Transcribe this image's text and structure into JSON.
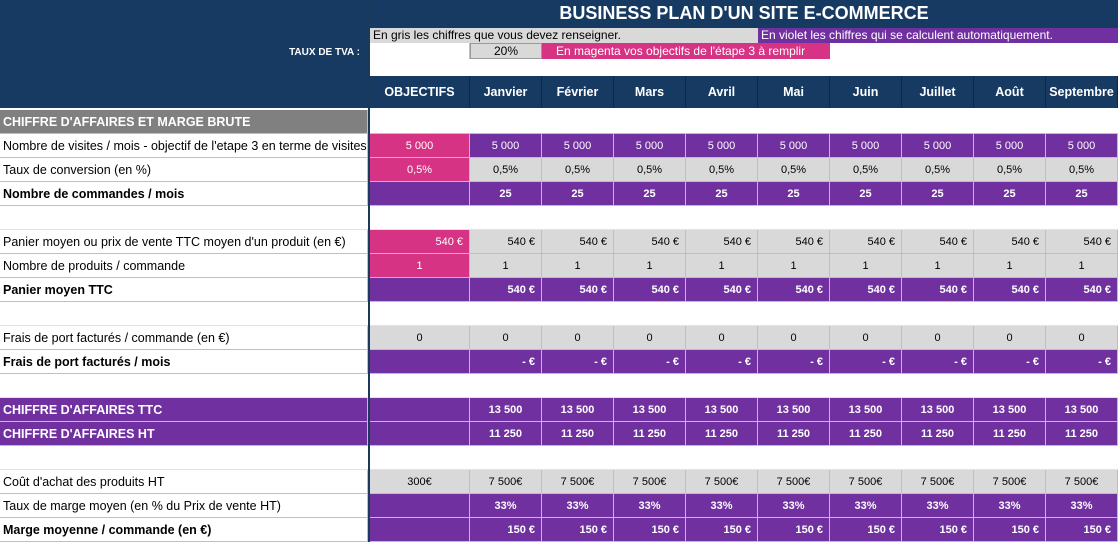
{
  "title": "BUSINESS PLAN D'UN SITE E-COMMERCE",
  "legend": {
    "gray": "En gris les chiffres que vous devez renseigner.",
    "violet": "En violet les chiffres qui se calculent automatiquement.",
    "magenta": "En magenta vos objectifs de l'étape 3 à remplir"
  },
  "tva": {
    "label": "TAUX DE TVA :",
    "value": "20%"
  },
  "columns": [
    "OBJECTIFS",
    "Janvier",
    "Février",
    "Mars",
    "Avril",
    "Mai",
    "Juin",
    "Juillet",
    "Août",
    "Septembre"
  ],
  "colors": {
    "navy": "#173a63",
    "gray": "#d9d9d9",
    "violet": "#7030a0",
    "magenta": "#d63384",
    "section_gray": "#808080"
  },
  "rows": [
    {
      "type": "section",
      "style": "gray",
      "label": "CHIFFRE D'AFFAIRES ET MARGE BRUTE"
    },
    {
      "type": "data",
      "label": "Nombre de visites / mois - objectif de l'etape 3 en terme de visites",
      "bold": false,
      "obj": "5 000",
      "obj_style": "magenta",
      "obj_align": "center",
      "month": "5 000",
      "month_style": "violet",
      "month_align": "center",
      "month_bold": false
    },
    {
      "type": "data",
      "label": "Taux de conversion (en %)",
      "bold": false,
      "obj": "0,5%",
      "obj_style": "magenta",
      "obj_align": "center",
      "month": "0,5%",
      "month_style": "gray",
      "month_align": "center",
      "month_bold": false
    },
    {
      "type": "data",
      "label": "Nombre de commandes / mois",
      "bold": true,
      "obj": "",
      "obj_style": "violet",
      "obj_align": "center",
      "month": "25",
      "month_style": "violet",
      "month_align": "center",
      "month_bold": true
    },
    {
      "type": "empty"
    },
    {
      "type": "data",
      "label": "Panier moyen ou prix de vente TTC moyen d'un produit (en €)",
      "bold": false,
      "obj": "540 €",
      "obj_style": "magenta",
      "obj_align": "right",
      "month": "540 €",
      "month_style": "gray",
      "month_align": "right",
      "month_bold": false
    },
    {
      "type": "data",
      "label": "Nombre de produits / commande",
      "bold": false,
      "obj": "1",
      "obj_style": "magenta",
      "obj_align": "center",
      "month": "1",
      "month_style": "gray",
      "month_align": "center",
      "month_bold": false
    },
    {
      "type": "data",
      "label": "Panier moyen TTC",
      "bold": true,
      "obj": "",
      "obj_style": "violet",
      "obj_align": "right",
      "month": "540 €",
      "month_style": "violet",
      "month_align": "right",
      "month_bold": true
    },
    {
      "type": "empty"
    },
    {
      "type": "data",
      "label": "Frais de port facturés / commande (en €)",
      "bold": false,
      "obj": "0",
      "obj_style": "gray",
      "obj_align": "center",
      "month": "0",
      "month_style": "gray",
      "month_align": "center",
      "month_bold": false
    },
    {
      "type": "data",
      "label": "Frais de port facturés / mois",
      "bold": true,
      "obj": "",
      "obj_style": "violet",
      "obj_align": "right",
      "month": "-   €",
      "month_style": "violet",
      "month_align": "right",
      "month_bold": true
    },
    {
      "type": "empty"
    },
    {
      "type": "data",
      "label": "CHIFFRE D'AFFAIRES TTC",
      "bold": true,
      "label_style": "violet",
      "obj": "",
      "obj_style": "violet",
      "obj_align": "center",
      "month": "13 500",
      "month_style": "violet",
      "month_align": "center",
      "month_bold": true
    },
    {
      "type": "data",
      "label": "CHIFFRE D'AFFAIRES HT",
      "bold": true,
      "label_style": "violet",
      "obj": "",
      "obj_style": "violet",
      "obj_align": "center",
      "month": "11 250",
      "month_style": "violet",
      "month_align": "center",
      "month_bold": true
    },
    {
      "type": "empty"
    },
    {
      "type": "data",
      "label": "Coût d'achat des produits HT",
      "bold": false,
      "obj": "300€",
      "obj_style": "gray",
      "obj_align": "center",
      "month": "7 500€",
      "month_style": "gray",
      "month_align": "center",
      "month_bold": false
    },
    {
      "type": "data",
      "label": "Taux de marge moyen (en % du Prix de vente HT)",
      "bold": false,
      "obj": "",
      "obj_style": "violet",
      "obj_align": "center",
      "month": "33%",
      "month_style": "violet",
      "month_align": "center",
      "month_bold": true
    },
    {
      "type": "data",
      "label": "Marge moyenne / commande (en €)",
      "bold": true,
      "obj": "",
      "obj_style": "violet",
      "obj_align": "right",
      "month": "150 €",
      "month_style": "violet",
      "month_align": "right",
      "month_bold": true
    }
  ]
}
